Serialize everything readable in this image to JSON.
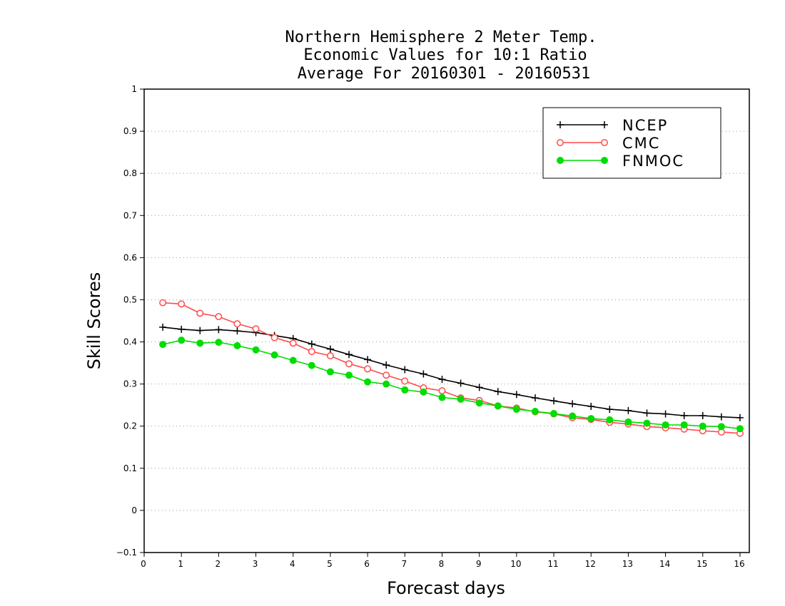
{
  "chart_data": {
    "type": "line",
    "title_lines": [
      "Northern Hemisphere 2 Meter Temp.",
      "Economic Values for 10:1 Ratio",
      "Average For 20160301 - 20160531"
    ],
    "xlabel": "Forecast days",
    "ylabel": "Skill Scores",
    "xlim": [
      0,
      16.25
    ],
    "ylim": [
      -0.1,
      1
    ],
    "x_ticks": [
      "0",
      "1",
      "2",
      "3",
      "4",
      "5",
      "6",
      "7",
      "8",
      "9",
      "10",
      "11",
      "12",
      "13",
      "14",
      "15",
      "16"
    ],
    "y_ticks": [
      "−0.1",
      "0",
      "0.1",
      "0.2",
      "0.3",
      "0.4",
      "0.5",
      "0.6",
      "0.7",
      "0.8",
      "0.9",
      "1"
    ],
    "grid": true,
    "legend_position": "top-right",
    "x": [
      0.5,
      1,
      1.5,
      2,
      2.5,
      3,
      3.5,
      4,
      4.5,
      5,
      5.5,
      6,
      6.5,
      7,
      7.5,
      8,
      8.5,
      9,
      9.5,
      10,
      10.5,
      11,
      11.5,
      12,
      12.5,
      13,
      13.5,
      14,
      14.5,
      15,
      15.5,
      16
    ],
    "series": [
      {
        "name": "NCEP",
        "color": "#000000",
        "marker": "plus",
        "values": [
          0.435,
          0.43,
          0.427,
          0.429,
          0.426,
          0.422,
          0.415,
          0.408,
          0.395,
          0.383,
          0.37,
          0.358,
          0.345,
          0.334,
          0.324,
          0.311,
          0.302,
          0.292,
          0.282,
          0.275,
          0.267,
          0.26,
          0.253,
          0.247,
          0.24,
          0.237,
          0.231,
          0.229,
          0.225,
          0.225,
          0.222,
          0.22
        ]
      },
      {
        "name": "CMC",
        "color": "#ff4a4a",
        "marker": "open-circle",
        "values": [
          0.493,
          0.49,
          0.468,
          0.46,
          0.443,
          0.431,
          0.41,
          0.397,
          0.377,
          0.367,
          0.348,
          0.336,
          0.321,
          0.307,
          0.291,
          0.284,
          0.267,
          0.261,
          0.248,
          0.243,
          0.234,
          0.229,
          0.22,
          0.216,
          0.209,
          0.205,
          0.199,
          0.196,
          0.193,
          0.189,
          0.186,
          0.183
        ]
      },
      {
        "name": "FNMOC",
        "color": "#00dd00",
        "marker": "filled-circle",
        "values": [
          0.394,
          0.404,
          0.397,
          0.399,
          0.391,
          0.381,
          0.369,
          0.356,
          0.344,
          0.329,
          0.321,
          0.305,
          0.3,
          0.286,
          0.281,
          0.268,
          0.264,
          0.255,
          0.248,
          0.24,
          0.235,
          0.23,
          0.224,
          0.218,
          0.215,
          0.21,
          0.207,
          0.203,
          0.203,
          0.2,
          0.199,
          0.194
        ]
      }
    ]
  }
}
